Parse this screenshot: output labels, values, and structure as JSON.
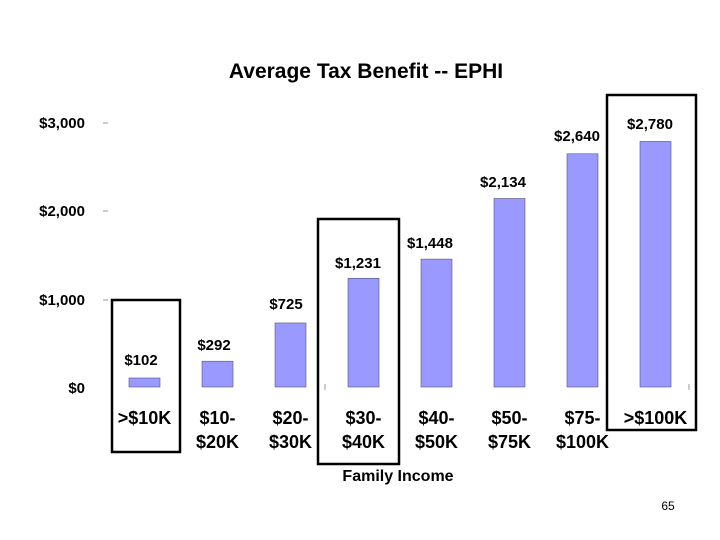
{
  "page_number": "65",
  "chart_data": {
    "type": "bar",
    "title": "Average Tax Benefit -- EPHI",
    "xlabel": "Family Income",
    "ylabel": "",
    "ylim": [
      0,
      3000
    ],
    "yticks": [
      "$0",
      "$1,000",
      "$2,000",
      "$3,000"
    ],
    "categories": [
      [
        ">$10K"
      ],
      [
        "$10-",
        "$20K"
      ],
      [
        "$20-",
        "$30K"
      ],
      [
        "$30-",
        "$40K"
      ],
      [
        "$40-",
        "$50K"
      ],
      [
        "$50-",
        "$75K"
      ],
      [
        "$75-",
        "$100K"
      ],
      [
        ">$100K"
      ]
    ],
    "values": [
      102,
      292,
      725,
      1231,
      1448,
      2134,
      2640,
      2780
    ],
    "data_labels": [
      "$102",
      "$292",
      "$725",
      "$1,231",
      "$1,448",
      "$2,134",
      "$2,640",
      "$2,780"
    ],
    "bar_color": "#9999ff",
    "grid": false,
    "highlighted_categories": [
      0,
      3,
      7
    ]
  }
}
